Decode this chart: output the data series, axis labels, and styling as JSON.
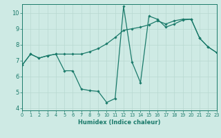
{
  "line1_x": [
    0,
    1,
    2,
    3,
    4,
    5,
    6,
    7,
    8,
    9,
    10,
    11,
    12,
    13,
    14,
    15,
    16,
    17,
    18,
    19,
    20,
    21,
    22,
    23
  ],
  "line1_y": [
    6.7,
    7.4,
    7.15,
    7.3,
    7.4,
    7.4,
    7.4,
    7.4,
    7.55,
    7.75,
    8.05,
    8.45,
    8.9,
    9.0,
    9.1,
    9.25,
    9.5,
    9.3,
    9.5,
    9.6,
    9.6,
    8.4,
    7.85,
    7.5
  ],
  "line2_x": [
    0,
    1,
    2,
    3,
    4,
    5,
    6,
    7,
    8,
    9,
    10,
    11,
    12,
    13,
    14,
    15,
    16,
    17,
    18,
    19,
    20,
    21,
    22,
    23
  ],
  "line2_y": [
    6.7,
    7.4,
    7.15,
    7.3,
    7.4,
    6.35,
    6.35,
    5.2,
    5.1,
    5.05,
    4.35,
    4.6,
    10.4,
    6.9,
    5.6,
    9.8,
    9.6,
    9.1,
    9.3,
    9.55,
    9.6,
    8.4,
    7.85,
    7.5
  ],
  "line_color": "#1a7a6a",
  "bg_color": "#ceeae4",
  "grid_color_major": "#b8d8d0",
  "grid_color_minor": "#d0eae4",
  "xlabel": "Humidex (Indice chaleur)",
  "xlim": [
    0,
    23
  ],
  "ylim": [
    3.85,
    10.55
  ],
  "yticks": [
    4,
    5,
    6,
    7,
    8,
    9,
    10
  ],
  "xticks": [
    0,
    1,
    2,
    3,
    4,
    5,
    6,
    7,
    8,
    9,
    10,
    11,
    12,
    13,
    14,
    15,
    16,
    17,
    18,
    19,
    20,
    21,
    22,
    23
  ],
  "xlabel_fontsize": 6.0,
  "ytick_fontsize": 6.0,
  "xtick_fontsize": 4.8
}
